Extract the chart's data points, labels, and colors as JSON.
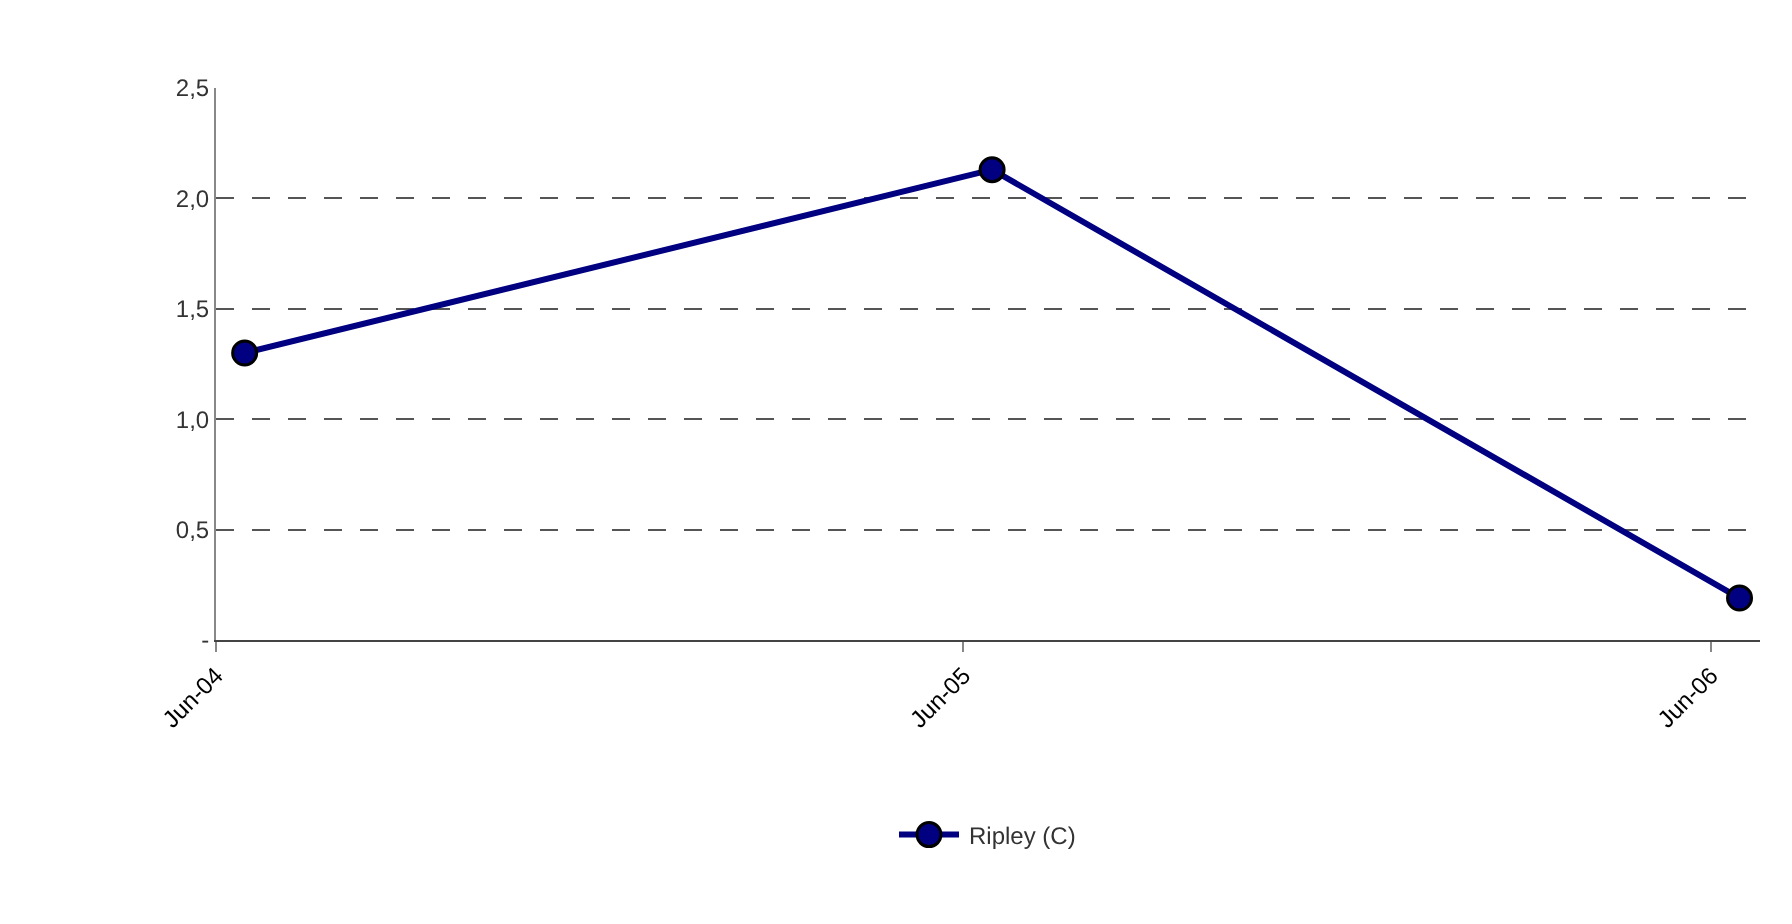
{
  "chart_data": {
    "type": "line",
    "x": [
      "2004-06-15",
      "2005-06-15",
      "2006-06-15"
    ],
    "series": [
      {
        "name": "Ripley (C)",
        "color": "#000080",
        "values": [
          1.3,
          2.13,
          0.19
        ]
      }
    ],
    "xlim": [
      "2004-06-01",
      "2006-06-25"
    ],
    "xticks": [
      {
        "value": "2004-06-01",
        "label": "Jun-04"
      },
      {
        "value": "2005-06-01",
        "label": "Jun-05"
      },
      {
        "value": "2006-06-01",
        "label": "Jun-06"
      }
    ],
    "ylim": [
      0,
      2.5
    ],
    "yticks": [
      {
        "value": 0,
        "label": "-"
      },
      {
        "value": 0.5,
        "label": "0,5"
      },
      {
        "value": 1,
        "label": "1,0"
      },
      {
        "value": 1.5,
        "label": "1,5"
      },
      {
        "value": 2,
        "label": "2,0"
      },
      {
        "value": 2.5,
        "label": "2,5"
      }
    ],
    "grid": "y",
    "legend": "bottom",
    "marker": "circle",
    "line_style": "solid"
  }
}
